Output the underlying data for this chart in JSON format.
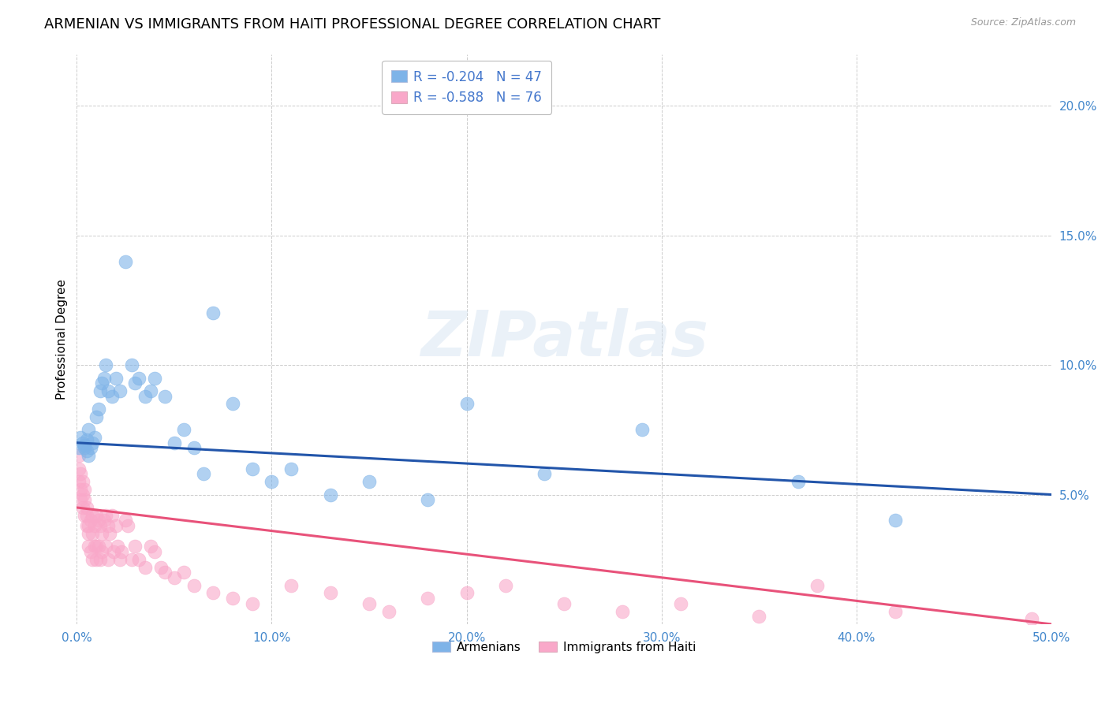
{
  "title": "ARMENIAN VS IMMIGRANTS FROM HAITI PROFESSIONAL DEGREE CORRELATION CHART",
  "source": "Source: ZipAtlas.com",
  "ylabel": "Professional Degree",
  "watermark": "ZIPatlas",
  "xlim": [
    0.0,
    0.5
  ],
  "ylim": [
    0.0,
    0.22
  ],
  "xticks": [
    0.0,
    0.1,
    0.2,
    0.3,
    0.4,
    0.5
  ],
  "yticks": [
    0.05,
    0.1,
    0.15,
    0.2
  ],
  "xticklabels": [
    "0.0%",
    "10.0%",
    "20.0%",
    "30.0%",
    "40.0%",
    "50.0%"
  ],
  "yticklabels": [
    "5.0%",
    "10.0%",
    "15.0%",
    "20.0%"
  ],
  "armenian_color": "#7EB3E8",
  "haiti_color": "#F9A8C9",
  "armenian_line_color": "#2255AA",
  "haiti_line_color": "#E8527A",
  "legend_label_armenian": "Armenians",
  "legend_label_haiti": "Immigrants from Haiti",
  "armenian_R": "R = -0.204",
  "armenian_N": "N = 47",
  "haiti_R": "R = -0.588",
  "haiti_N": "N = 76",
  "legend_text_color": "#4477CC",
  "armenian_x": [
    0.001,
    0.002,
    0.003,
    0.004,
    0.004,
    0.005,
    0.005,
    0.006,
    0.006,
    0.007,
    0.008,
    0.009,
    0.01,
    0.011,
    0.012,
    0.013,
    0.014,
    0.015,
    0.016,
    0.018,
    0.02,
    0.022,
    0.025,
    0.028,
    0.03,
    0.032,
    0.035,
    0.038,
    0.04,
    0.045,
    0.05,
    0.055,
    0.06,
    0.065,
    0.07,
    0.08,
    0.09,
    0.1,
    0.11,
    0.13,
    0.15,
    0.18,
    0.2,
    0.24,
    0.29,
    0.37,
    0.42
  ],
  "armenian_y": [
    0.068,
    0.072,
    0.07,
    0.069,
    0.068,
    0.071,
    0.067,
    0.075,
    0.065,
    0.068,
    0.07,
    0.072,
    0.08,
    0.083,
    0.09,
    0.093,
    0.095,
    0.1,
    0.09,
    0.088,
    0.095,
    0.09,
    0.14,
    0.1,
    0.093,
    0.095,
    0.088,
    0.09,
    0.095,
    0.088,
    0.07,
    0.075,
    0.068,
    0.058,
    0.12,
    0.085,
    0.06,
    0.055,
    0.06,
    0.05,
    0.055,
    0.048,
    0.085,
    0.058,
    0.075,
    0.055,
    0.04
  ],
  "haiti_x": [
    0.001,
    0.001,
    0.001,
    0.002,
    0.002,
    0.002,
    0.003,
    0.003,
    0.003,
    0.004,
    0.004,
    0.004,
    0.005,
    0.005,
    0.005,
    0.006,
    0.006,
    0.006,
    0.007,
    0.007,
    0.008,
    0.008,
    0.008,
    0.009,
    0.009,
    0.01,
    0.01,
    0.01,
    0.011,
    0.011,
    0.012,
    0.012,
    0.013,
    0.013,
    0.014,
    0.015,
    0.015,
    0.016,
    0.016,
    0.017,
    0.018,
    0.019,
    0.02,
    0.021,
    0.022,
    0.023,
    0.025,
    0.026,
    0.028,
    0.03,
    0.032,
    0.035,
    0.038,
    0.04,
    0.043,
    0.045,
    0.05,
    0.055,
    0.06,
    0.07,
    0.08,
    0.09,
    0.11,
    0.13,
    0.15,
    0.16,
    0.18,
    0.2,
    0.22,
    0.25,
    0.28,
    0.31,
    0.35,
    0.38,
    0.42,
    0.49
  ],
  "haiti_y": [
    0.065,
    0.06,
    0.055,
    0.058,
    0.052,
    0.048,
    0.055,
    0.05,
    0.045,
    0.052,
    0.048,
    0.042,
    0.045,
    0.038,
    0.042,
    0.038,
    0.03,
    0.035,
    0.04,
    0.028,
    0.042,
    0.035,
    0.025,
    0.038,
    0.03,
    0.042,
    0.03,
    0.025,
    0.04,
    0.03,
    0.038,
    0.025,
    0.035,
    0.028,
    0.04,
    0.042,
    0.03,
    0.038,
    0.025,
    0.035,
    0.042,
    0.028,
    0.038,
    0.03,
    0.025,
    0.028,
    0.04,
    0.038,
    0.025,
    0.03,
    0.025,
    0.022,
    0.03,
    0.028,
    0.022,
    0.02,
    0.018,
    0.02,
    0.015,
    0.012,
    0.01,
    0.008,
    0.015,
    0.012,
    0.008,
    0.005,
    0.01,
    0.012,
    0.015,
    0.008,
    0.005,
    0.008,
    0.003,
    0.015,
    0.005,
    0.002
  ],
  "grid_color": "#CCCCCC",
  "background_color": "#FFFFFF",
  "title_fontsize": 13,
  "axis_label_fontsize": 11,
  "tick_fontsize": 11
}
